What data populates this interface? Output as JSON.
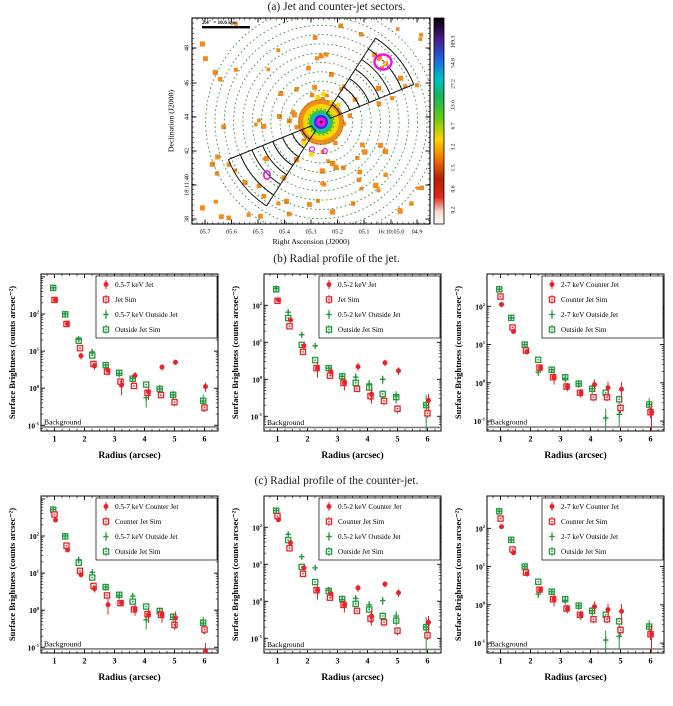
{
  "figure": {
    "caption_a": "(a) Jet and counter-jet sectors.",
    "caption_b": "(b) Radial profile of the jet.",
    "caption_c": "(c) Radial profile of the counter-jet."
  },
  "sky_map": {
    "scale_bar": "2.4″ = 10.6 kpc",
    "xlabel": "Right Ascension (J2000)",
    "ylabel": "Declination (J2000)",
    "x_ticks": [
      "05.7",
      "05.6",
      "05.5",
      "05.4",
      "05.3",
      "05.2",
      "05.1",
      "16:10:05.0",
      "04.9"
    ],
    "y_ticks": [
      "48",
      "46",
      "44",
      "42",
      "18:11:40",
      "38"
    ],
    "colorbar_ticks": [
      "0.2",
      "0.6",
      "1.5",
      "3.2",
      "6.7",
      "13.6",
      "27.2",
      "54.8",
      "109.3"
    ]
  },
  "colors": {
    "red": "#e8232a",
    "green": "#239a3c",
    "orange": "#f28a1e",
    "magenta": "#f012e0",
    "circle_green": "#2f8f2f"
  },
  "chart_data": [
    {
      "type": "heatmap",
      "title": "(a) Jet and counter-jet sectors.",
      "xlabel": "Right Ascension (J2000)",
      "ylabel": "Declination (J2000)",
      "x_ticks": [
        "05.7",
        "05.6",
        "05.5",
        "05.4",
        "05.3",
        "05.2",
        "05.1",
        "16:10:05.0",
        "04.9"
      ],
      "y_ticks": [
        "48",
        "46",
        "44",
        "42",
        "18:11:40",
        "38"
      ],
      "colorbar_ticks": [
        0.2,
        0.6,
        1.5,
        3.2,
        6.7,
        13.6,
        27.2,
        54.8,
        109.3
      ],
      "scale_bar": "2.4″ = 10.6 kpc",
      "annotations": [
        "jet sector wedge (NE)",
        "counter-jet sector wedge (SW)",
        "dotted annuli",
        "point sources (orange squares)",
        "magenta contours"
      ]
    },
    {
      "type": "scatter",
      "id": "b1",
      "xlabel": "Radius (arcsec)",
      "ylabel": "Surface Brightness (counts arcsec⁻²)",
      "xlim": [
        0.55,
        6.45
      ],
      "ylim": [
        0.07,
        1200
      ],
      "background": {
        "label": "Background",
        "level": 0.09
      },
      "x": [
        1.0,
        1.4,
        1.85,
        2.3,
        2.75,
        3.2,
        3.65,
        4.1,
        4.55,
        5.0,
        6.0
      ],
      "series": [
        {
          "label": "0.5-7 keV Jet",
          "marker": "circle",
          "color": "#e8232a",
          "y": [
            240,
            55,
            7.5,
            4.0,
            3.0,
            1.2,
            2.2,
            0.8,
            3.7,
            5.0,
            1.1
          ],
          "yerr": [
            28,
            7,
            1.6,
            0.9,
            0.7,
            0.55,
            0.5,
            0.32,
            0.7,
            0.8,
            0.3
          ]
        },
        {
          "label": "Jet Sim",
          "marker": "square",
          "color": "#e8232a",
          "y": [
            240,
            54,
            12,
            4.5,
            2.8,
            1.5,
            1.15,
            0.75,
            0.65,
            0.42,
            0.3
          ],
          "yerr": [
            20,
            5,
            1.4,
            0.6,
            0.4,
            0.25,
            0.2,
            0.15,
            0.12,
            0.09,
            0.07
          ]
        },
        {
          "label": "0.5-7 keV Outside Jet",
          "marker": "plus",
          "color": "#239a3c",
          "y": [
            510,
            100,
            21,
            9.5,
            4.2,
            2.5,
            1.85,
            0.55,
            0.95,
            0.66,
            0.45
          ],
          "yerr": [
            45,
            11,
            3,
            1.6,
            0.9,
            0.55,
            0.45,
            0.25,
            0.28,
            0.2,
            0.22
          ]
        },
        {
          "label": "Outside Jet Sim",
          "marker": "square",
          "color": "#239a3c",
          "y": [
            505,
            98,
            19,
            7.6,
            4.2,
            2.6,
            1.8,
            1.25,
            0.95,
            0.66,
            0.46
          ],
          "yerr": [
            35,
            8,
            2,
            1.0,
            0.6,
            0.4,
            0.3,
            0.2,
            0.18,
            0.13,
            0.1
          ]
        }
      ]
    },
    {
      "type": "scatter",
      "id": "b2",
      "xlabel": "Radius (arcsec)",
      "ylabel": "Surface Brightness (counts arcsec⁻²)",
      "xlim": [
        0.55,
        6.45
      ],
      "ylim": [
        0.04,
        700
      ],
      "background": {
        "label": "Background",
        "level": 0.05
      },
      "x": [
        1.0,
        1.4,
        1.85,
        2.3,
        2.75,
        3.2,
        3.65,
        4.1,
        4.55,
        5.0,
        6.0
      ],
      "series": [
        {
          "label": "0.5-2 keV Jet",
          "marker": "circle",
          "color": "#e8232a",
          "y": [
            140,
            40,
            8,
            2.0,
            1.6,
            0.8,
            2.2,
            0.4,
            2.8,
            1.7,
            0.27
          ],
          "yerr": [
            18,
            6,
            1.5,
            0.9,
            0.4,
            0.3,
            0.5,
            0.18,
            0.55,
            0.4,
            0.13
          ]
        },
        {
          "label": "Jet Sim",
          "marker": "square",
          "color": "#e8232a",
          "y": [
            132,
            27,
            5.5,
            2.0,
            1.25,
            0.8,
            0.55,
            0.35,
            0.26,
            0.16,
            0.12
          ],
          "yerr": [
            14,
            3,
            0.8,
            0.35,
            0.22,
            0.15,
            0.1,
            0.08,
            0.06,
            0.04,
            0.03
          ]
        },
        {
          "label": "0.5-2 keV Outside Jet",
          "marker": "plus",
          "color": "#239a3c",
          "y": [
            285,
            65,
            16,
            8.0,
            2.0,
            1.2,
            1.15,
            0.75,
            1.0,
            0.35,
            0.2
          ],
          "yerr": [
            28,
            7,
            2,
            1.3,
            0.45,
            0.3,
            0.28,
            0.22,
            0.26,
            0.13,
            0.17
          ]
        },
        {
          "label": "Outside Jet Sim",
          "marker": "square",
          "color": "#239a3c",
          "y": [
            270,
            45,
            8.5,
            3.3,
            2.0,
            1.2,
            0.8,
            0.6,
            0.4,
            0.33,
            0.2
          ],
          "yerr": [
            24,
            5,
            1,
            0.5,
            0.35,
            0.25,
            0.16,
            0.12,
            0.1,
            0.08,
            0.06
          ]
        }
      ]
    },
    {
      "type": "scatter",
      "id": "b3",
      "xlabel": "Radius (arcsec)",
      "ylabel": "Surface Brightness (counts arcsec⁻²)",
      "xlim": [
        0.55,
        6.45
      ],
      "ylim": [
        0.055,
        700
      ],
      "background": {
        "label": "Background",
        "level": 0.07
      },
      "x": [
        1.0,
        1.4,
        1.85,
        2.3,
        2.75,
        3.2,
        3.65,
        4.1,
        4.55,
        5.0,
        6.0
      ],
      "series": [
        {
          "label": "2-7 keV Counter Jet",
          "marker": "circle",
          "color": "#e8232a",
          "y": [
            112,
            22,
            6.5,
            2.5,
            1.4,
            0.8,
            0.55,
            0.9,
            0.75,
            0.68,
            0.17
          ],
          "yerr": [
            13,
            3,
            1.1,
            0.5,
            0.5,
            0.2,
            0.15,
            0.33,
            0.32,
            0.38,
            0.12
          ]
        },
        {
          "label": "Counter Jet Sim",
          "marker": "square",
          "color": "#e8232a",
          "y": [
            180,
            28,
            7.0,
            2.5,
            1.4,
            0.8,
            0.55,
            0.42,
            0.42,
            0.22,
            0.17
          ],
          "yerr": [
            18,
            3,
            0.8,
            0.35,
            0.25,
            0.15,
            0.11,
            0.09,
            0.09,
            0.06,
            0.05
          ]
        },
        {
          "label": "2-7 keV Outside Jet",
          "marker": "plus",
          "color": "#239a3c",
          "y": [
            280,
            50,
            10,
            1.9,
            2.2,
            1.3,
            0.95,
            0.7,
            0.12,
            0.15,
            0.27
          ],
          "yerr": [
            26,
            5,
            1.2,
            0.4,
            0.45,
            0.3,
            0.22,
            0.2,
            0.09,
            0.08,
            0.13
          ]
        },
        {
          "label": "Outside Jet Sim",
          "marker": "square",
          "color": "#239a3c",
          "y": [
            278,
            50,
            10,
            4.0,
            2.2,
            1.4,
            0.95,
            0.7,
            0.55,
            0.37,
            0.27
          ],
          "yerr": [
            24,
            4,
            1,
            0.6,
            0.35,
            0.25,
            0.18,
            0.15,
            0.12,
            0.1,
            0.08
          ]
        }
      ]
    },
    {
      "type": "scatter",
      "id": "c1",
      "xlabel": "Radius (arcsec)",
      "ylabel": "Surface Brightness (counts arcsec⁻²)",
      "xlim": [
        0.55,
        6.45
      ],
      "ylim": [
        0.07,
        1200
      ],
      "background": {
        "label": "Background",
        "level": 0.09
      },
      "x": [
        1.0,
        1.4,
        1.85,
        2.3,
        2.75,
        3.2,
        3.65,
        4.1,
        4.55,
        5.0,
        6.0
      ],
      "series": [
        {
          "label": "0.5-7 keV Counter Jet",
          "marker": "circle",
          "color": "#e8232a",
          "y": [
            270,
            42,
            9,
            3.8,
            1.4,
            1.6,
            1.05,
            0.75,
            0.75,
            0.62,
            0.08
          ],
          "yerr": [
            30,
            5,
            1.5,
            0.8,
            0.65,
            0.3,
            0.35,
            0.3,
            0.3,
            0.3,
            0.05
          ]
        },
        {
          "label": "Counter Jet Sim",
          "marker": "square",
          "color": "#e8232a",
          "y": [
            380,
            55,
            11.5,
            4.5,
            2.5,
            1.55,
            1.05,
            0.78,
            0.75,
            0.4,
            0.3
          ],
          "yerr": [
            40,
            6,
            1.5,
            0.6,
            0.4,
            0.25,
            0.2,
            0.15,
            0.15,
            0.1,
            0.08
          ]
        },
        {
          "label": "0.5-7 keV Outside Jet",
          "marker": "plus",
          "color": "#239a3c",
          "y": [
            520,
            100,
            23,
            10.5,
            4.2,
            2.5,
            2.4,
            0.55,
            0.9,
            0.65,
            0.45
          ],
          "yerr": [
            45,
            11,
            3,
            1.7,
            0.9,
            0.55,
            0.5,
            0.25,
            0.28,
            0.2,
            0.22
          ]
        },
        {
          "label": "Outside Jet Sim",
          "marker": "square",
          "color": "#239a3c",
          "y": [
            515,
            98,
            19,
            7.6,
            4.2,
            2.6,
            1.7,
            1.25,
            0.95,
            0.66,
            0.46
          ],
          "yerr": [
            35,
            8,
            2,
            1,
            0.6,
            0.4,
            0.3,
            0.2,
            0.18,
            0.13,
            0.1
          ]
        }
      ]
    },
    {
      "type": "scatter",
      "id": "c2",
      "xlabel": "Radius (arcsec)",
      "ylabel": "Surface Brightness (counts arcsec⁻²)",
      "xlim": [
        0.55,
        6.45
      ],
      "ylim": [
        0.04,
        700
      ],
      "background": {
        "label": "Background",
        "level": 0.05
      },
      "x": [
        1.0,
        1.4,
        1.85,
        2.3,
        2.75,
        3.2,
        3.65,
        4.1,
        4.55,
        5.0,
        6.0
      ],
      "series": [
        {
          "label": "0.5-2 keV Counter Jet",
          "marker": "circle",
          "color": "#e8232a",
          "y": [
            160,
            38,
            8,
            2.0,
            1.6,
            0.8,
            2.3,
            0.4,
            2.9,
            1.7,
            0.27
          ],
          "yerr": [
            20,
            6,
            1.5,
            0.9,
            0.4,
            0.3,
            0.5,
            0.18,
            0.55,
            0.4,
            0.13
          ]
        },
        {
          "label": "Counter Jet Sim",
          "marker": "square",
          "color": "#e8232a",
          "y": [
            200,
            27,
            5.5,
            2.0,
            1.25,
            0.8,
            0.55,
            0.34,
            0.27,
            0.16,
            0.12
          ],
          "yerr": [
            20,
            3,
            0.8,
            0.35,
            0.22,
            0.15,
            0.1,
            0.08,
            0.06,
            0.04,
            0.03
          ]
        },
        {
          "label": "0.5-2 keV Outside Jet",
          "marker": "plus",
          "color": "#239a3c",
          "y": [
            285,
            65,
            16,
            8.0,
            2.0,
            1.1,
            1.2,
            0.8,
            1.05,
            0.4,
            0.2
          ],
          "yerr": [
            28,
            7,
            2,
            1.3,
            0.45,
            0.3,
            0.28,
            0.22,
            0.26,
            0.14,
            0.17
          ]
        },
        {
          "label": "Outside Jet Sim",
          "marker": "square",
          "color": "#239a3c",
          "y": [
            280,
            45,
            8.5,
            3.3,
            1.9,
            1.15,
            0.85,
            0.6,
            0.4,
            0.3,
            0.2
          ],
          "yerr": [
            24,
            5,
            1,
            0.5,
            0.35,
            0.25,
            0.16,
            0.12,
            0.1,
            0.08,
            0.06
          ]
        }
      ]
    },
    {
      "type": "scatter",
      "id": "c3",
      "xlabel": "Radius (arcsec)",
      "ylabel": "Surface Brightness (counts arcsec⁻²)",
      "xlim": [
        0.55,
        6.45
      ],
      "ylim": [
        0.055,
        700
      ],
      "background": {
        "label": "Background",
        "level": 0.07
      },
      "x": [
        1.0,
        1.4,
        1.85,
        2.3,
        2.75,
        3.2,
        3.65,
        4.1,
        4.55,
        5.0,
        6.0
      ],
      "series": [
        {
          "label": "2-7 keV Counter Jet",
          "marker": "circle",
          "color": "#e8232a",
          "y": [
            110,
            23,
            6.5,
            2.5,
            1.4,
            0.8,
            0.55,
            0.9,
            0.75,
            0.68,
            0.17
          ],
          "yerr": [
            13,
            3,
            1.1,
            0.5,
            0.5,
            0.2,
            0.15,
            0.33,
            0.32,
            0.38,
            0.12
          ]
        },
        {
          "label": "Counter Jet Sim",
          "marker": "square",
          "color": "#e8232a",
          "y": [
            180,
            28,
            7.0,
            2.5,
            1.4,
            0.8,
            0.55,
            0.42,
            0.42,
            0.22,
            0.17
          ],
          "yerr": [
            18,
            3,
            0.8,
            0.35,
            0.25,
            0.15,
            0.11,
            0.09,
            0.09,
            0.06,
            0.05
          ]
        },
        {
          "label": "2-7 keV Outside Jet",
          "marker": "plus",
          "color": "#239a3c",
          "y": [
            280,
            50,
            10,
            1.9,
            2.2,
            1.3,
            0.95,
            0.7,
            0.12,
            0.15,
            0.27
          ],
          "yerr": [
            26,
            5,
            1.2,
            0.4,
            0.45,
            0.3,
            0.22,
            0.2,
            0.09,
            0.08,
            0.13
          ]
        },
        {
          "label": "Outside Jet Sim",
          "marker": "square",
          "color": "#239a3c",
          "y": [
            278,
            50,
            10,
            4.0,
            2.2,
            1.4,
            0.95,
            0.7,
            0.55,
            0.37,
            0.27
          ],
          "yerr": [
            24,
            4,
            1,
            0.6,
            0.35,
            0.25,
            0.18,
            0.15,
            0.12,
            0.1,
            0.08
          ]
        }
      ]
    }
  ]
}
